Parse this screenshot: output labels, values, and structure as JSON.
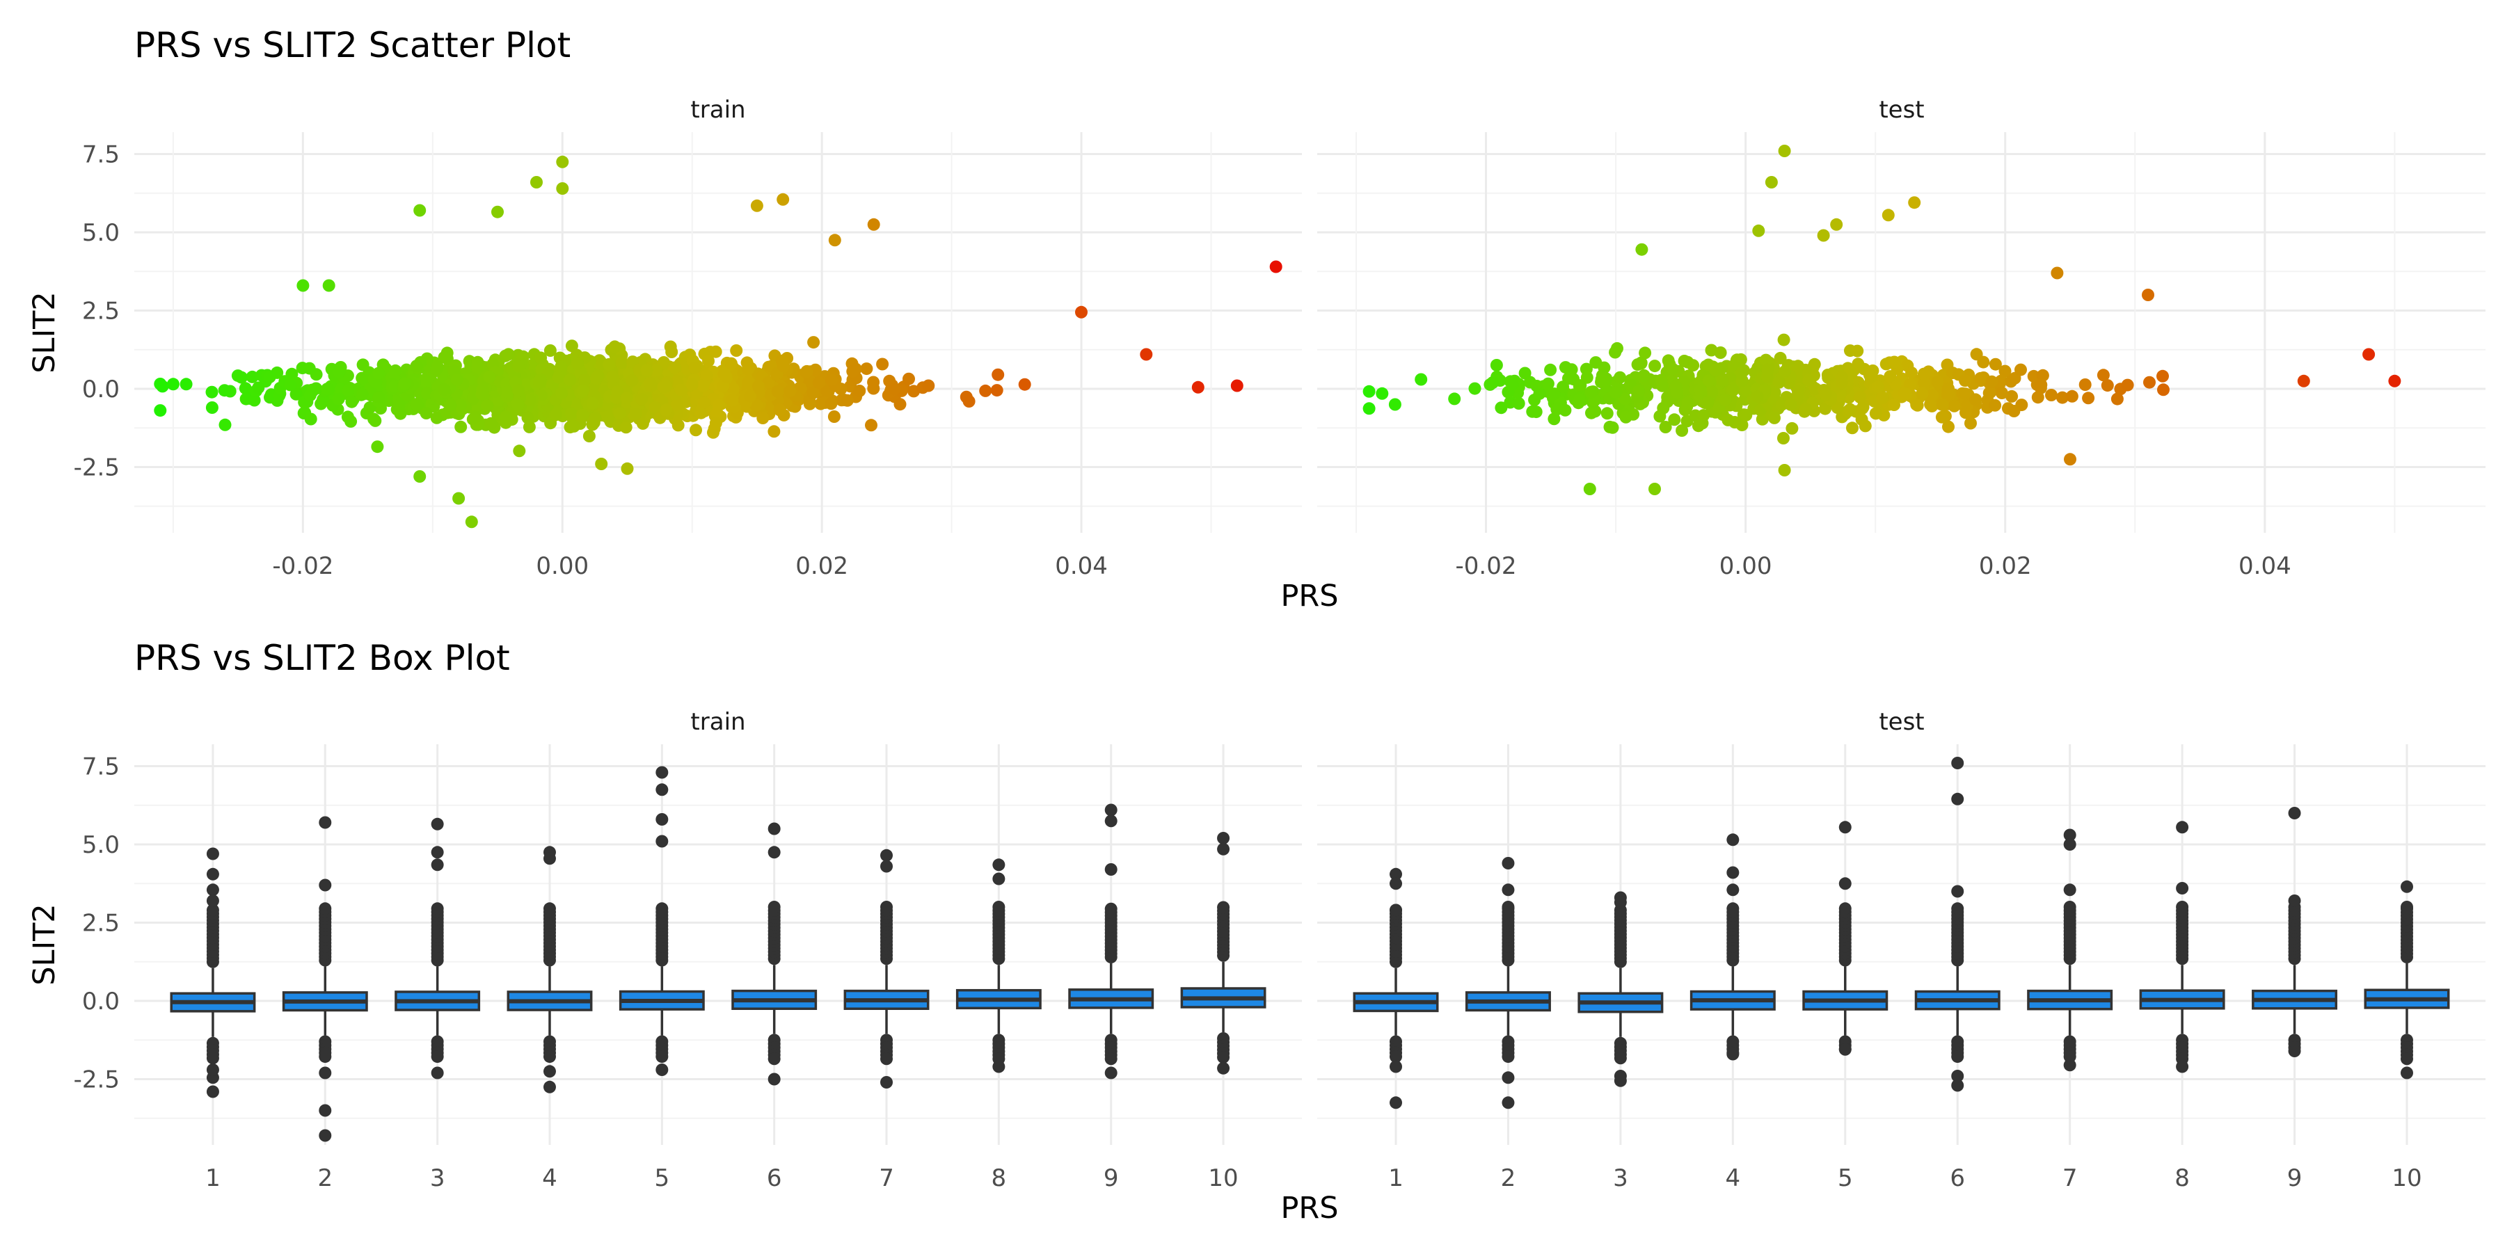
{
  "figure": {
    "scatter_title": "PRS vs SLIT2 Scatter Plot",
    "box_title": "PRS vs SLIT2 Box Plot",
    "scatter_xlabel": "PRS",
    "scatter_ylabel": "SLIT2",
    "box_xlabel": "PRS",
    "box_ylabel": "SLIT2",
    "panel_train": "train",
    "panel_test": "test"
  },
  "chart_data": [
    {
      "type": "scatter",
      "title": "PRS vs SLIT2 Scatter Plot",
      "xlabel": "PRS",
      "ylabel": "SLIT2",
      "facets": [
        "train",
        "test"
      ],
      "xlim": [
        -0.033,
        0.057
      ],
      "ylim": [
        -4.6,
        8.2
      ],
      "x_ticks": [
        "-0.02",
        "0.00",
        "0.02",
        "0.04"
      ],
      "x_tick_values": [
        -0.02,
        0.0,
        0.02,
        0.04
      ],
      "y_ticks": [
        "-2.5",
        "0.0",
        "2.5",
        "5.0",
        "7.5"
      ],
      "y_tick_values": [
        -2.5,
        0.0,
        2.5,
        5.0,
        7.5
      ],
      "color_scale": {
        "low": "#22f000",
        "mid": "#c8b400",
        "high": "#e81000",
        "mapped_to": "PRS"
      },
      "grid": true,
      "legend": "none",
      "series": [
        {
          "facet": "train",
          "n_points_approx": 6000,
          "x_range": [
            -0.031,
            0.055
          ],
          "y_core_sd": 0.55,
          "outliers": [
            {
              "x": 0.055,
              "y": 3.9
            },
            {
              "x": 0.052,
              "y": 0.1
            },
            {
              "x": 0.049,
              "y": 0.05
            },
            {
              "x": 0.0,
              "y": 7.25
            },
            {
              "x": -0.002,
              "y": 6.6
            },
            {
              "x": 0.0,
              "y": 6.4
            },
            {
              "x": -0.011,
              "y": 5.7
            },
            {
              "x": -0.005,
              "y": 5.65
            },
            {
              "x": 0.015,
              "y": 5.85
            },
            {
              "x": 0.017,
              "y": 6.05
            },
            {
              "x": 0.024,
              "y": 5.25
            },
            {
              "x": 0.021,
              "y": 4.75
            },
            {
              "x": 0.04,
              "y": 2.45
            },
            {
              "x": 0.045,
              "y": 1.1
            },
            {
              "x": -0.02,
              "y": 3.3
            },
            {
              "x": -0.018,
              "y": 3.3
            },
            {
              "x": -0.007,
              "y": -4.25
            },
            {
              "x": -0.008,
              "y": -3.5
            },
            {
              "x": -0.011,
              "y": -2.8
            },
            {
              "x": 0.003,
              "y": -2.4
            },
            {
              "x": 0.005,
              "y": -2.55
            },
            {
              "x": -0.03,
              "y": 0.15
            },
            {
              "x": -0.029,
              "y": 0.15
            },
            {
              "x": -0.027,
              "y": -0.6
            },
            {
              "x": -0.026,
              "y": -1.15
            }
          ]
        },
        {
          "facet": "test",
          "n_points_approx": 2500,
          "x_range": [
            -0.029,
            0.051
          ],
          "y_core_sd": 0.55,
          "outliers": [
            {
              "x": 0.05,
              "y": 0.25
            },
            {
              "x": 0.048,
              "y": 1.1
            },
            {
              "x": 0.043,
              "y": 0.25
            },
            {
              "x": 0.003,
              "y": 7.6
            },
            {
              "x": 0.002,
              "y": 6.6
            },
            {
              "x": 0.013,
              "y": 5.95
            },
            {
              "x": 0.011,
              "y": 5.55
            },
            {
              "x": 0.007,
              "y": 5.25
            },
            {
              "x": 0.006,
              "y": 4.9
            },
            {
              "x": 0.001,
              "y": 5.05
            },
            {
              "x": 0.024,
              "y": 3.7
            },
            {
              "x": 0.031,
              "y": 3.0
            },
            {
              "x": -0.008,
              "y": 4.45
            },
            {
              "x": -0.012,
              "y": -3.2
            },
            {
              "x": -0.007,
              "y": -3.2
            },
            {
              "x": 0.003,
              "y": -2.6
            },
            {
              "x": 0.025,
              "y": -2.25
            },
            {
              "x": -0.028,
              "y": -0.15
            },
            {
              "x": -0.027,
              "y": -0.5
            },
            {
              "x": -0.025,
              "y": 0.3
            }
          ]
        }
      ]
    },
    {
      "type": "box",
      "title": "PRS vs SLIT2 Box Plot",
      "xlabel": "PRS",
      "ylabel": "SLIT2",
      "facets": [
        "train",
        "test"
      ],
      "categories": [
        "1",
        "2",
        "3",
        "4",
        "5",
        "6",
        "7",
        "8",
        "9",
        "10"
      ],
      "ylim": [
        -4.6,
        8.2
      ],
      "y_ticks": [
        "-2.5",
        "0.0",
        "2.5",
        "5.0",
        "7.5"
      ],
      "y_tick_values": [
        -2.5,
        0.0,
        2.5,
        5.0,
        7.5
      ],
      "box_color": "#1e88e5",
      "outline_color": "#333333",
      "grid": true,
      "legend": "none",
      "series": [
        {
          "facet": "train",
          "boxes": [
            {
              "q1": -0.33,
              "median": -0.04,
              "q3": 0.24,
              "whisker_low": -1.15,
              "whisker_high": 1.05,
              "outlier_top": 4.7,
              "outlier_bottom": -2.9,
              "outliers_high": [
                4.7,
                4.05,
                3.55,
                3.2
              ],
              "outliers_low": [
                -2.9,
                -2.45,
                -2.2
              ]
            },
            {
              "q1": -0.3,
              "median": -0.02,
              "q3": 0.27,
              "whisker_low": -1.1,
              "whisker_high": 1.1,
              "outlier_top": 5.7,
              "outlier_bottom": -4.3,
              "outliers_high": [
                5.7,
                3.7
              ],
              "outliers_low": [
                -4.3,
                -3.5,
                -2.3
              ]
            },
            {
              "q1": -0.29,
              "median": -0.01,
              "q3": 0.29,
              "whisker_low": -1.1,
              "whisker_high": 1.1,
              "outlier_top": 5.65,
              "outlier_bottom": -2.3,
              "outliers_high": [
                5.65,
                4.75,
                4.35
              ],
              "outliers_low": [
                -2.3
              ]
            },
            {
              "q1": -0.29,
              "median": -0.01,
              "q3": 0.29,
              "whisker_low": -1.1,
              "whisker_high": 1.1,
              "outlier_top": 4.75,
              "outlier_bottom": -2.75,
              "outliers_high": [
                4.75,
                4.55
              ],
              "outliers_low": [
                -2.75,
                -2.25
              ]
            },
            {
              "q1": -0.27,
              "median": 0.0,
              "q3": 0.3,
              "whisker_low": -1.1,
              "whisker_high": 1.1,
              "outlier_top": 7.3,
              "outlier_bottom": -2.2,
              "outliers_high": [
                7.3,
                6.75,
                5.8,
                5.1
              ],
              "outliers_low": [
                -2.2
              ]
            },
            {
              "q1": -0.25,
              "median": 0.02,
              "q3": 0.32,
              "whisker_low": -1.05,
              "whisker_high": 1.15,
              "outlier_top": 5.5,
              "outlier_bottom": -2.5,
              "outliers_high": [
                5.5,
                4.75
              ],
              "outliers_low": [
                -2.5
              ]
            },
            {
              "q1": -0.25,
              "median": 0.02,
              "q3": 0.32,
              "whisker_low": -1.05,
              "whisker_high": 1.15,
              "outlier_top": 4.65,
              "outlier_bottom": -2.6,
              "outliers_high": [
                4.65,
                4.3
              ],
              "outliers_low": [
                -2.6
              ]
            },
            {
              "q1": -0.23,
              "median": 0.04,
              "q3": 0.34,
              "whisker_low": -1.05,
              "whisker_high": 1.15,
              "outlier_top": 4.35,
              "outlier_bottom": -2.1,
              "outliers_high": [
                4.35,
                3.9
              ],
              "outliers_low": [
                -2.1
              ]
            },
            {
              "q1": -0.22,
              "median": 0.05,
              "q3": 0.36,
              "whisker_low": -1.05,
              "whisker_high": 1.2,
              "outlier_top": 6.1,
              "outlier_bottom": -2.3,
              "outliers_high": [
                6.1,
                5.75,
                4.2
              ],
              "outliers_low": [
                -2.3
              ]
            },
            {
              "q1": -0.2,
              "median": 0.08,
              "q3": 0.4,
              "whisker_low": -1.0,
              "whisker_high": 1.25,
              "outlier_top": 5.2,
              "outlier_bottom": -2.15,
              "outliers_high": [
                5.2,
                4.85
              ],
              "outliers_low": [
                -2.15
              ]
            }
          ]
        },
        {
          "facet": "test",
          "boxes": [
            {
              "q1": -0.32,
              "median": -0.04,
              "q3": 0.24,
              "whisker_low": -1.1,
              "whisker_high": 1.05,
              "outlier_top": 4.05,
              "outlier_bottom": -3.25,
              "outliers_high": [
                4.05,
                3.75,
                2.9
              ],
              "outliers_low": [
                -3.25,
                -2.1
              ]
            },
            {
              "q1": -0.3,
              "median": -0.02,
              "q3": 0.27,
              "whisker_low": -1.1,
              "whisker_high": 1.1,
              "outlier_top": 4.4,
              "outlier_bottom": -3.25,
              "outliers_high": [
                4.4,
                3.55,
                3.0
              ],
              "outliers_low": [
                -3.25,
                -2.45
              ]
            },
            {
              "q1": -0.35,
              "median": -0.05,
              "q3": 0.24,
              "whisker_low": -1.15,
              "whisker_high": 1.05,
              "outlier_top": 3.3,
              "outlier_bottom": -2.55,
              "outliers_high": [
                3.3,
                3.15
              ],
              "outliers_low": [
                -2.55,
                -2.4
              ]
            },
            {
              "q1": -0.27,
              "median": 0.02,
              "q3": 0.3,
              "whisker_low": -1.1,
              "whisker_high": 1.1,
              "outlier_top": 5.15,
              "outlier_bottom": -1.7,
              "outliers_high": [
                5.15,
                4.1,
                3.55
              ],
              "outliers_low": [
                -1.7
              ]
            },
            {
              "q1": -0.27,
              "median": 0.01,
              "q3": 0.3,
              "whisker_low": -1.1,
              "whisker_high": 1.1,
              "outlier_top": 5.55,
              "outlier_bottom": -1.55,
              "outliers_high": [
                5.55,
                3.75
              ],
              "outliers_low": [
                -1.55
              ]
            },
            {
              "q1": -0.26,
              "median": 0.02,
              "q3": 0.3,
              "whisker_low": -1.1,
              "whisker_high": 1.1,
              "outlier_top": 7.6,
              "outlier_bottom": -2.7,
              "outliers_high": [
                7.6,
                6.45,
                3.5
              ],
              "outliers_low": [
                -2.7,
                -2.4
              ]
            },
            {
              "q1": -0.26,
              "median": 0.02,
              "q3": 0.32,
              "whisker_low": -1.1,
              "whisker_high": 1.15,
              "outlier_top": 5.3,
              "outlier_bottom": -2.05,
              "outliers_high": [
                5.3,
                5.0,
                3.55
              ],
              "outliers_low": [
                -2.05
              ]
            },
            {
              "q1": -0.24,
              "median": 0.03,
              "q3": 0.33,
              "whisker_low": -1.05,
              "whisker_high": 1.15,
              "outlier_top": 5.55,
              "outlier_bottom": -2.1,
              "outliers_high": [
                5.55,
                3.6
              ],
              "outliers_low": [
                -2.1
              ]
            },
            {
              "q1": -0.24,
              "median": 0.03,
              "q3": 0.32,
              "whisker_low": -1.05,
              "whisker_high": 1.15,
              "outlier_top": 6.0,
              "outlier_bottom": -1.6,
              "outliers_high": [
                6.0,
                3.2
              ],
              "outliers_low": [
                -1.6
              ]
            },
            {
              "q1": -0.22,
              "median": 0.05,
              "q3": 0.35,
              "whisker_low": -1.05,
              "whisker_high": 1.2,
              "outlier_top": 3.65,
              "outlier_bottom": -2.3,
              "outliers_high": [
                3.65,
                3.0
              ],
              "outliers_low": [
                -2.3
              ]
            }
          ]
        }
      ]
    }
  ]
}
